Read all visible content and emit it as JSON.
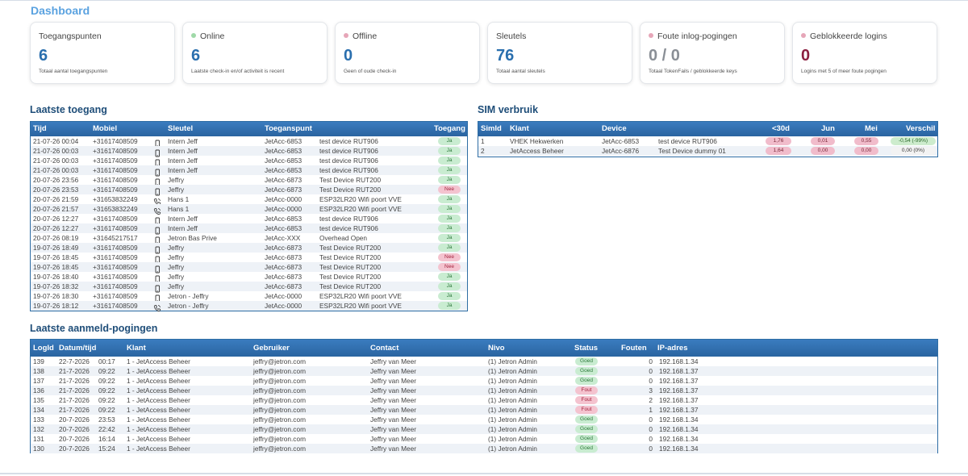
{
  "page": {
    "title": "Dashboard"
  },
  "colors": {
    "accent": "#3a7cbf",
    "title": "#1f4e79",
    "ok": "#c9ecd1",
    "bad": "#f4c3cf",
    "online_dot": "#9fd9a8",
    "offline_dot": "#e6a6b8"
  },
  "cards": [
    {
      "title": "Toegangspunten",
      "value": "6",
      "sub": "Totaal aantal toegangspunten",
      "dot": "",
      "value_color": "#2a6fae"
    },
    {
      "title": "Online",
      "value": "6",
      "sub": "Laatste check-in en/of activiteit is recent",
      "dot": "#9fd9a8",
      "value_color": "#2a6fae"
    },
    {
      "title": "Offline",
      "value": "0",
      "sub": "Geen of oude check-in",
      "dot": "#e6a6b8",
      "value_color": "#2a6fae"
    },
    {
      "title": "Sleutels",
      "value": "76",
      "sub": "Totaal aantal sleutels",
      "dot": "",
      "value_color": "#2a6fae"
    },
    {
      "title": "Foute inlog-pogingen",
      "value": "0 / 0",
      "sub": "Totaal TokenFails / geblokkeerde keys",
      "dot": "#e6a6b8",
      "value_color": "#8a8f96"
    },
    {
      "title": "Geblokkeerde logins",
      "value": "0",
      "sub": "Logins met 5 of meer foute pogingen",
      "dot": "#e6a6b8",
      "value_color": "#8b1e3f"
    }
  ],
  "access": {
    "title": "Laatste toegang",
    "columns": [
      "Tijd",
      "Mobiel",
      "Sleutel",
      "Toeganspunt",
      "Toegang"
    ],
    "rows": [
      {
        "tijd": "21-07-26 00:04",
        "mobiel": "+31617408509",
        "icon": "phone-icon",
        "sleutel": "Intern Jeff",
        "punt": "JetAcc-6853",
        "device": "test device RUT906",
        "toegang": "Ja"
      },
      {
        "tijd": "21-07-26 00:03",
        "mobiel": "+31617408509",
        "icon": "phone-icon",
        "sleutel": "Intern Jeff",
        "punt": "JetAcc-6853",
        "device": "test device RUT906",
        "toegang": "Ja"
      },
      {
        "tijd": "21-07-26 00:03",
        "mobiel": "+31617408509",
        "icon": "phone-icon",
        "sleutel": "Intern Jeff",
        "punt": "JetAcc-6853",
        "device": "test device RUT906",
        "toegang": "Ja"
      },
      {
        "tijd": "21-07-26 00:03",
        "mobiel": "+31617408509",
        "icon": "phone-icon",
        "sleutel": "Intern Jeff",
        "punt": "JetAcc-6853",
        "device": "test device RUT906",
        "toegang": "Ja"
      },
      {
        "tijd": "20-07-26 23:56",
        "mobiel": "+31617408509",
        "icon": "phone-icon",
        "sleutel": "Jeffry",
        "punt": "JetAcc-6873",
        "device": "Test Device RUT200",
        "toegang": "Ja"
      },
      {
        "tijd": "20-07-26 23:53",
        "mobiel": "+31617408509",
        "icon": "phone-icon",
        "sleutel": "Jeffry",
        "punt": "JetAcc-6873",
        "device": "Test Device RUT200",
        "toegang": "Nee"
      },
      {
        "tijd": "20-07-26 21:59",
        "mobiel": "+31653832249",
        "icon": "call-icon",
        "sleutel": "Hans 1",
        "punt": "JetAcc-0000",
        "device": "ESP32LR20 Wifi poort VVE",
        "toegang": "Ja"
      },
      {
        "tijd": "20-07-26 21:57",
        "mobiel": "+31653832249",
        "icon": "call-icon",
        "sleutel": "Hans 1",
        "punt": "JetAcc-0000",
        "device": "ESP32LR20 Wifi poort VVE",
        "toegang": "Ja"
      },
      {
        "tijd": "20-07-26 12:27",
        "mobiel": "+31617408509",
        "icon": "phone-icon",
        "sleutel": "Intern Jeff",
        "punt": "JetAcc-6853",
        "device": "test device RUT906",
        "toegang": "Ja"
      },
      {
        "tijd": "20-07-26 12:27",
        "mobiel": "+31617408509",
        "icon": "phone-icon",
        "sleutel": "Intern Jeff",
        "punt": "JetAcc-6853",
        "device": "test device RUT906",
        "toegang": "Ja"
      },
      {
        "tijd": "20-07-26 08:19",
        "mobiel": "+31645217517",
        "icon": "phone-icon",
        "sleutel": "Jetron Bas Prive",
        "punt": "JetAcc-XXX",
        "device": "Overhead Open",
        "toegang": "Ja"
      },
      {
        "tijd": "19-07-26 18:49",
        "mobiel": "+31617408509",
        "icon": "phone-icon",
        "sleutel": "Jeffry",
        "punt": "JetAcc-6873",
        "device": "Test Device RUT200",
        "toegang": "Ja"
      },
      {
        "tijd": "19-07-26 18:45",
        "mobiel": "+31617408509",
        "icon": "phone-icon",
        "sleutel": "Jeffry",
        "punt": "JetAcc-6873",
        "device": "Test Device RUT200",
        "toegang": "Nee"
      },
      {
        "tijd": "19-07-26 18:45",
        "mobiel": "+31617408509",
        "icon": "phone-icon",
        "sleutel": "Jeffry",
        "punt": "JetAcc-6873",
        "device": "Test Device RUT200",
        "toegang": "Nee"
      },
      {
        "tijd": "19-07-26 18:40",
        "mobiel": "+31617408509",
        "icon": "phone-icon",
        "sleutel": "Jeffry",
        "punt": "JetAcc-6873",
        "device": "Test Device RUT200",
        "toegang": "Ja"
      },
      {
        "tijd": "19-07-26 18:32",
        "mobiel": "+31617408509",
        "icon": "phone-icon",
        "sleutel": "Jeffry",
        "punt": "JetAcc-6873",
        "device": "Test Device RUT200",
        "toegang": "Ja"
      },
      {
        "tijd": "19-07-26 18:30",
        "mobiel": "+31617408509",
        "icon": "phone-icon",
        "sleutel": "Jetron - Jeffry",
        "punt": "JetAcc-0000",
        "device": "ESP32LR20 Wifi poort VVE",
        "toegang": "Ja"
      },
      {
        "tijd": "19-07-26 18:12",
        "mobiel": "+31617408509",
        "icon": "call-icon",
        "sleutel": "Jetron - Jeffry",
        "punt": "JetAcc-0000",
        "device": "ESP32LR20 Wifi poort VVE",
        "toegang": "Ja"
      }
    ]
  },
  "sim": {
    "title": "SIM verbruik",
    "columns": [
      "SimId",
      "Klant",
      "Device",
      "<30d",
      "Jun",
      "Mei",
      "Verschil"
    ],
    "rows": [
      {
        "id": "1",
        "klant": "VHEK Hekwerken",
        "punt": "JetAcc-6853",
        "device": "test device RUT906",
        "d30": "1,76",
        "jun": "0,01",
        "mei": "0,55",
        "verschil": "-0,54 (-99%)",
        "verschil_tone": "green"
      },
      {
        "id": "2",
        "klant": "JetAccess Beheer",
        "punt": "JetAcc-6876",
        "device": "Test Device dummy 01",
        "d30": "1,64",
        "jun": "0,00",
        "mei": "0,00",
        "verschil": "0,00 (0%)",
        "verschil_tone": "plain"
      }
    ]
  },
  "logins": {
    "title": "Laatste aanmeld-pogingen",
    "columns": [
      "LogId",
      "Datum/tijd",
      "Klant",
      "Gebruiker",
      "Contact",
      "Nivo",
      "Status",
      "Fouten",
      "IP-adres"
    ],
    "rows": [
      {
        "id": "139",
        "date": "22-7-2026",
        "time": "00:17",
        "klant": "1 - JetAccess Beheer",
        "user": "jeffry@jetron.com",
        "contact": "Jeffry van Meer",
        "nivo": "(1) Jetron Admin",
        "status": "Goed",
        "fouten": "0",
        "ip": "192.168.1.34"
      },
      {
        "id": "138",
        "date": "21-7-2026",
        "time": "09:22",
        "klant": "1 - JetAccess Beheer",
        "user": "jeffry@jetron.com",
        "contact": "Jeffry van Meer",
        "nivo": "(1) Jetron Admin",
        "status": "Goed",
        "fouten": "0",
        "ip": "192.168.1.37"
      },
      {
        "id": "137",
        "date": "21-7-2026",
        "time": "09:22",
        "klant": "1 - JetAccess Beheer",
        "user": "jeffry@jetron.com",
        "contact": "Jeffry van Meer",
        "nivo": "(1) Jetron Admin",
        "status": "Goed",
        "fouten": "0",
        "ip": "192.168.1.37"
      },
      {
        "id": "136",
        "date": "21-7-2026",
        "time": "09:22",
        "klant": "1 - JetAccess Beheer",
        "user": "jeffry@jetron.com",
        "contact": "Jeffry van Meer",
        "nivo": "(1) Jetron Admin",
        "status": "Fout",
        "fouten": "3",
        "ip": "192.168.1.37"
      },
      {
        "id": "135",
        "date": "21-7-2026",
        "time": "09:22",
        "klant": "1 - JetAccess Beheer",
        "user": "jeffry@jetron.com",
        "contact": "Jeffry van Meer",
        "nivo": "(1) Jetron Admin",
        "status": "Fout",
        "fouten": "2",
        "ip": "192.168.1.37"
      },
      {
        "id": "134",
        "date": "21-7-2026",
        "time": "09:22",
        "klant": "1 - JetAccess Beheer",
        "user": "jeffry@jetron.com",
        "contact": "Jeffry van Meer",
        "nivo": "(1) Jetron Admin",
        "status": "Fout",
        "fouten": "1",
        "ip": "192.168.1.37"
      },
      {
        "id": "133",
        "date": "20-7-2026",
        "time": "23:53",
        "klant": "1 - JetAccess Beheer",
        "user": "jeffry@jetron.com",
        "contact": "Jeffry van Meer",
        "nivo": "(1) Jetron Admin",
        "status": "Goed",
        "fouten": "0",
        "ip": "192.168.1.34"
      },
      {
        "id": "132",
        "date": "20-7-2026",
        "time": "22:42",
        "klant": "1 - JetAccess Beheer",
        "user": "jeffry@jetron.com",
        "contact": "Jeffry van Meer",
        "nivo": "(1) Jetron Admin",
        "status": "Goed",
        "fouten": "0",
        "ip": "192.168.1.34"
      },
      {
        "id": "131",
        "date": "20-7-2026",
        "time": "16:14",
        "klant": "1 - JetAccess Beheer",
        "user": "jeffry@jetron.com",
        "contact": "Jeffry van Meer",
        "nivo": "(1) Jetron Admin",
        "status": "Goed",
        "fouten": "0",
        "ip": "192.168.1.34"
      },
      {
        "id": "130",
        "date": "20-7-2026",
        "time": "15:24",
        "klant": "1 - JetAccess Beheer",
        "user": "jeffry@jetron.com",
        "contact": "Jeffry van Meer",
        "nivo": "(1) Jetron Admin",
        "status": "Goed",
        "fouten": "0",
        "ip": "192.168.1.34"
      }
    ]
  }
}
